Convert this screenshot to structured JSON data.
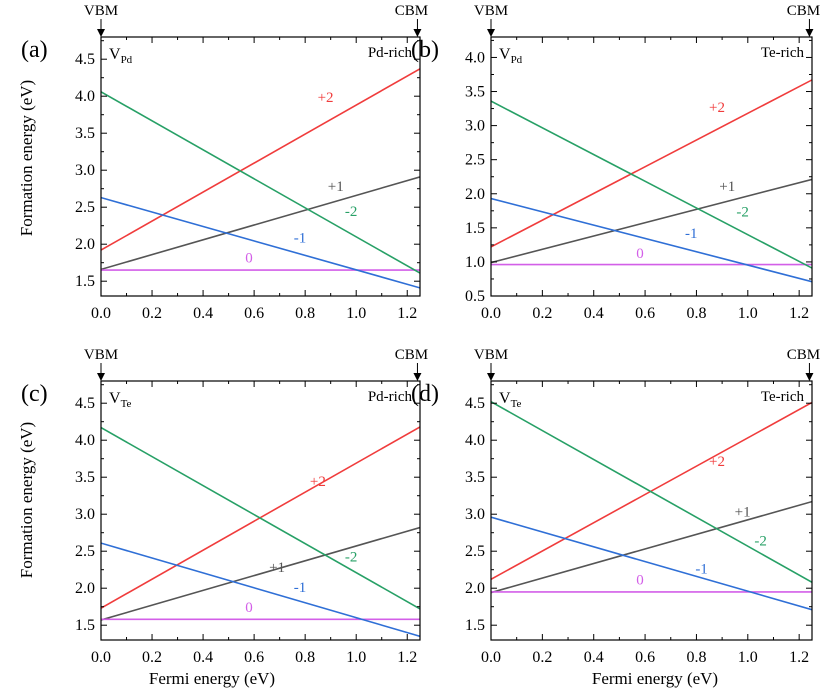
{
  "figure": {
    "shared_xlabel": "Fermi energy (eV)",
    "shared_ylabel": "Formation energy (eV)",
    "vbm_label": "VBM",
    "cbm_label": "CBM",
    "colors": {
      "+2": "#f03c3c",
      "+1": "#555555",
      "0": "#d35fe8",
      "-1": "#2f6fd6",
      "-2": "#27a066"
    }
  },
  "chart_data": [
    {
      "panel": "(a)",
      "type": "line",
      "defect": "V",
      "defect_sub": "Pd",
      "condition": "Pd-rich",
      "xlabel": "Fermi energy (eV)",
      "ylabel": "Formation energy (eV)",
      "xlim": [
        0,
        1.25
      ],
      "ylim": [
        1.3,
        4.8
      ],
      "xticks": [
        0.0,
        0.2,
        0.4,
        0.6,
        0.8,
        1.0,
        1.2
      ],
      "xtick_labels": [
        "0.0",
        "0.2",
        "0.4",
        "0.6",
        "0.8",
        "1.0",
        "1.2"
      ],
      "yticks": [
        1.5,
        2.0,
        2.5,
        3.0,
        3.5,
        4.0,
        4.5
      ],
      "ytick_labels": [
        "1.5",
        "2.0",
        "2.5",
        "3.0",
        "3.5",
        "4.0",
        "4.5"
      ],
      "series": [
        {
          "name": "+2",
          "x": [
            0,
            1.25
          ],
          "y": [
            1.92,
            4.37
          ],
          "label": "+2",
          "label_pos": [
            0.88,
            3.92
          ]
        },
        {
          "name": "+1",
          "x": [
            0,
            1.25
          ],
          "y": [
            1.66,
            2.91
          ],
          "label": "+1",
          "label_pos": [
            0.92,
            2.72
          ]
        },
        {
          "name": "0",
          "x": [
            0,
            1.25
          ],
          "y": [
            1.65,
            1.65
          ],
          "label": "0",
          "label_pos": [
            0.58,
            1.75
          ]
        },
        {
          "name": "-1",
          "x": [
            0,
            1.25
          ],
          "y": [
            2.63,
            1.41
          ],
          "label": "-1",
          "label_pos": [
            0.78,
            2.02
          ]
        },
        {
          "name": "-2",
          "x": [
            0,
            1.25
          ],
          "y": [
            4.06,
            1.61
          ],
          "label": "-2",
          "label_pos": [
            0.98,
            2.38
          ]
        }
      ]
    },
    {
      "panel": "(b)",
      "type": "line",
      "defect": "V",
      "defect_sub": "Pd",
      "condition": "Te-rich",
      "xlabel": "Fermi energy (eV)",
      "ylabel": "Formation energy (eV)",
      "xlim": [
        0,
        1.25
      ],
      "ylim": [
        0.5,
        4.3
      ],
      "xticks": [
        0.0,
        0.2,
        0.4,
        0.6,
        0.8,
        1.0,
        1.2
      ],
      "xtick_labels": [
        "0.0",
        "0.2",
        "0.4",
        "0.6",
        "0.8",
        "1.0",
        "1.2"
      ],
      "yticks": [
        0.5,
        1.0,
        1.5,
        2.0,
        2.5,
        3.0,
        3.5,
        4.0
      ],
      "ytick_labels": [
        "0.5",
        "1.0",
        "1.5",
        "2.0",
        "2.5",
        "3.0",
        "3.5",
        "4.0"
      ],
      "series": [
        {
          "name": "+2",
          "x": [
            0,
            1.25
          ],
          "y": [
            1.22,
            3.67
          ],
          "label": "+2",
          "label_pos": [
            0.88,
            3.2
          ]
        },
        {
          "name": "+1",
          "x": [
            0,
            1.25
          ],
          "y": [
            0.99,
            2.21
          ],
          "label": "+1",
          "label_pos": [
            0.92,
            2.04
          ]
        },
        {
          "name": "0",
          "x": [
            0,
            1.25
          ],
          "y": [
            0.96,
            0.96
          ],
          "label": "0",
          "label_pos": [
            0.58,
            1.06
          ]
        },
        {
          "name": "-1",
          "x": [
            0,
            1.25
          ],
          "y": [
            1.93,
            0.71
          ],
          "label": "-1",
          "label_pos": [
            0.78,
            1.35
          ]
        },
        {
          "name": "-2",
          "x": [
            0,
            1.25
          ],
          "y": [
            3.36,
            0.91
          ],
          "label": "-2",
          "label_pos": [
            0.98,
            1.67
          ]
        }
      ]
    },
    {
      "panel": "(c)",
      "type": "line",
      "defect": "V",
      "defect_sub": "Te",
      "condition": "Pd-rich",
      "xlabel": "Fermi energy (eV)",
      "ylabel": "Formation energy (eV)",
      "xlim": [
        0,
        1.25
      ],
      "ylim": [
        1.3,
        4.8
      ],
      "xticks": [
        0.0,
        0.2,
        0.4,
        0.6,
        0.8,
        1.0,
        1.2
      ],
      "xtick_labels": [
        "0.0",
        "0.2",
        "0.4",
        "0.6",
        "0.8",
        "1.0",
        "1.2"
      ],
      "yticks": [
        1.5,
        2.0,
        2.5,
        3.0,
        3.5,
        4.0,
        4.5
      ],
      "ytick_labels": [
        "1.5",
        "2.0",
        "2.5",
        "3.0",
        "3.5",
        "4.0",
        "4.5"
      ],
      "series": [
        {
          "name": "+2",
          "x": [
            0,
            1.25
          ],
          "y": [
            1.73,
            4.18
          ],
          "label": "+2",
          "label_pos": [
            0.85,
            3.38
          ]
        },
        {
          "name": "+1",
          "x": [
            0,
            1.25
          ],
          "y": [
            1.57,
            2.82
          ],
          "label": "+1",
          "label_pos": [
            0.69,
            2.22
          ]
        },
        {
          "name": "0",
          "x": [
            0,
            1.25
          ],
          "y": [
            1.58,
            1.58
          ],
          "label": "0",
          "label_pos": [
            0.58,
            1.68
          ]
        },
        {
          "name": "-1",
          "x": [
            0,
            1.25
          ],
          "y": [
            2.61,
            1.35
          ],
          "label": "-1",
          "label_pos": [
            0.78,
            1.95
          ]
        },
        {
          "name": "-2",
          "x": [
            0,
            1.25
          ],
          "y": [
            4.17,
            1.72
          ],
          "label": "-2",
          "label_pos": [
            0.98,
            2.36
          ]
        }
      ]
    },
    {
      "panel": "(d)",
      "type": "line",
      "defect": "V",
      "defect_sub": "Te",
      "condition": "Te-rich",
      "xlabel": "Fermi energy (eV)",
      "ylabel": "Formation energy (eV)",
      "xlim": [
        0,
        1.25
      ],
      "ylim": [
        1.3,
        4.8
      ],
      "xticks": [
        0.0,
        0.2,
        0.4,
        0.6,
        0.8,
        1.0,
        1.2
      ],
      "xtick_labels": [
        "0.0",
        "0.2",
        "0.4",
        "0.6",
        "0.8",
        "1.0",
        "1.2"
      ],
      "yticks": [
        1.5,
        2.0,
        2.5,
        3.0,
        3.5,
        4.0,
        4.5
      ],
      "ytick_labels": [
        "1.5",
        "2.0",
        "2.5",
        "3.0",
        "3.5",
        "4.0",
        "4.5"
      ],
      "series": [
        {
          "name": "+2",
          "x": [
            0,
            1.25
          ],
          "y": [
            2.12,
            4.51
          ],
          "label": "+2",
          "label_pos": [
            0.88,
            3.65
          ]
        },
        {
          "name": "+1",
          "x": [
            0,
            1.25
          ],
          "y": [
            1.94,
            3.17
          ],
          "label": "+1",
          "label_pos": [
            0.98,
            2.97
          ]
        },
        {
          "name": "0",
          "x": [
            0,
            1.25
          ],
          "y": [
            1.95,
            1.95
          ],
          "label": "0",
          "label_pos": [
            0.58,
            2.05
          ]
        },
        {
          "name": "-1",
          "x": [
            0,
            1.25
          ],
          "y": [
            2.96,
            1.71
          ],
          "label": "-1",
          "label_pos": [
            0.82,
            2.2
          ]
        },
        {
          "name": "-2",
          "x": [
            0,
            1.25
          ],
          "y": [
            4.52,
            2.08
          ],
          "label": "-2",
          "label_pos": [
            1.05,
            2.58
          ]
        }
      ]
    }
  ]
}
